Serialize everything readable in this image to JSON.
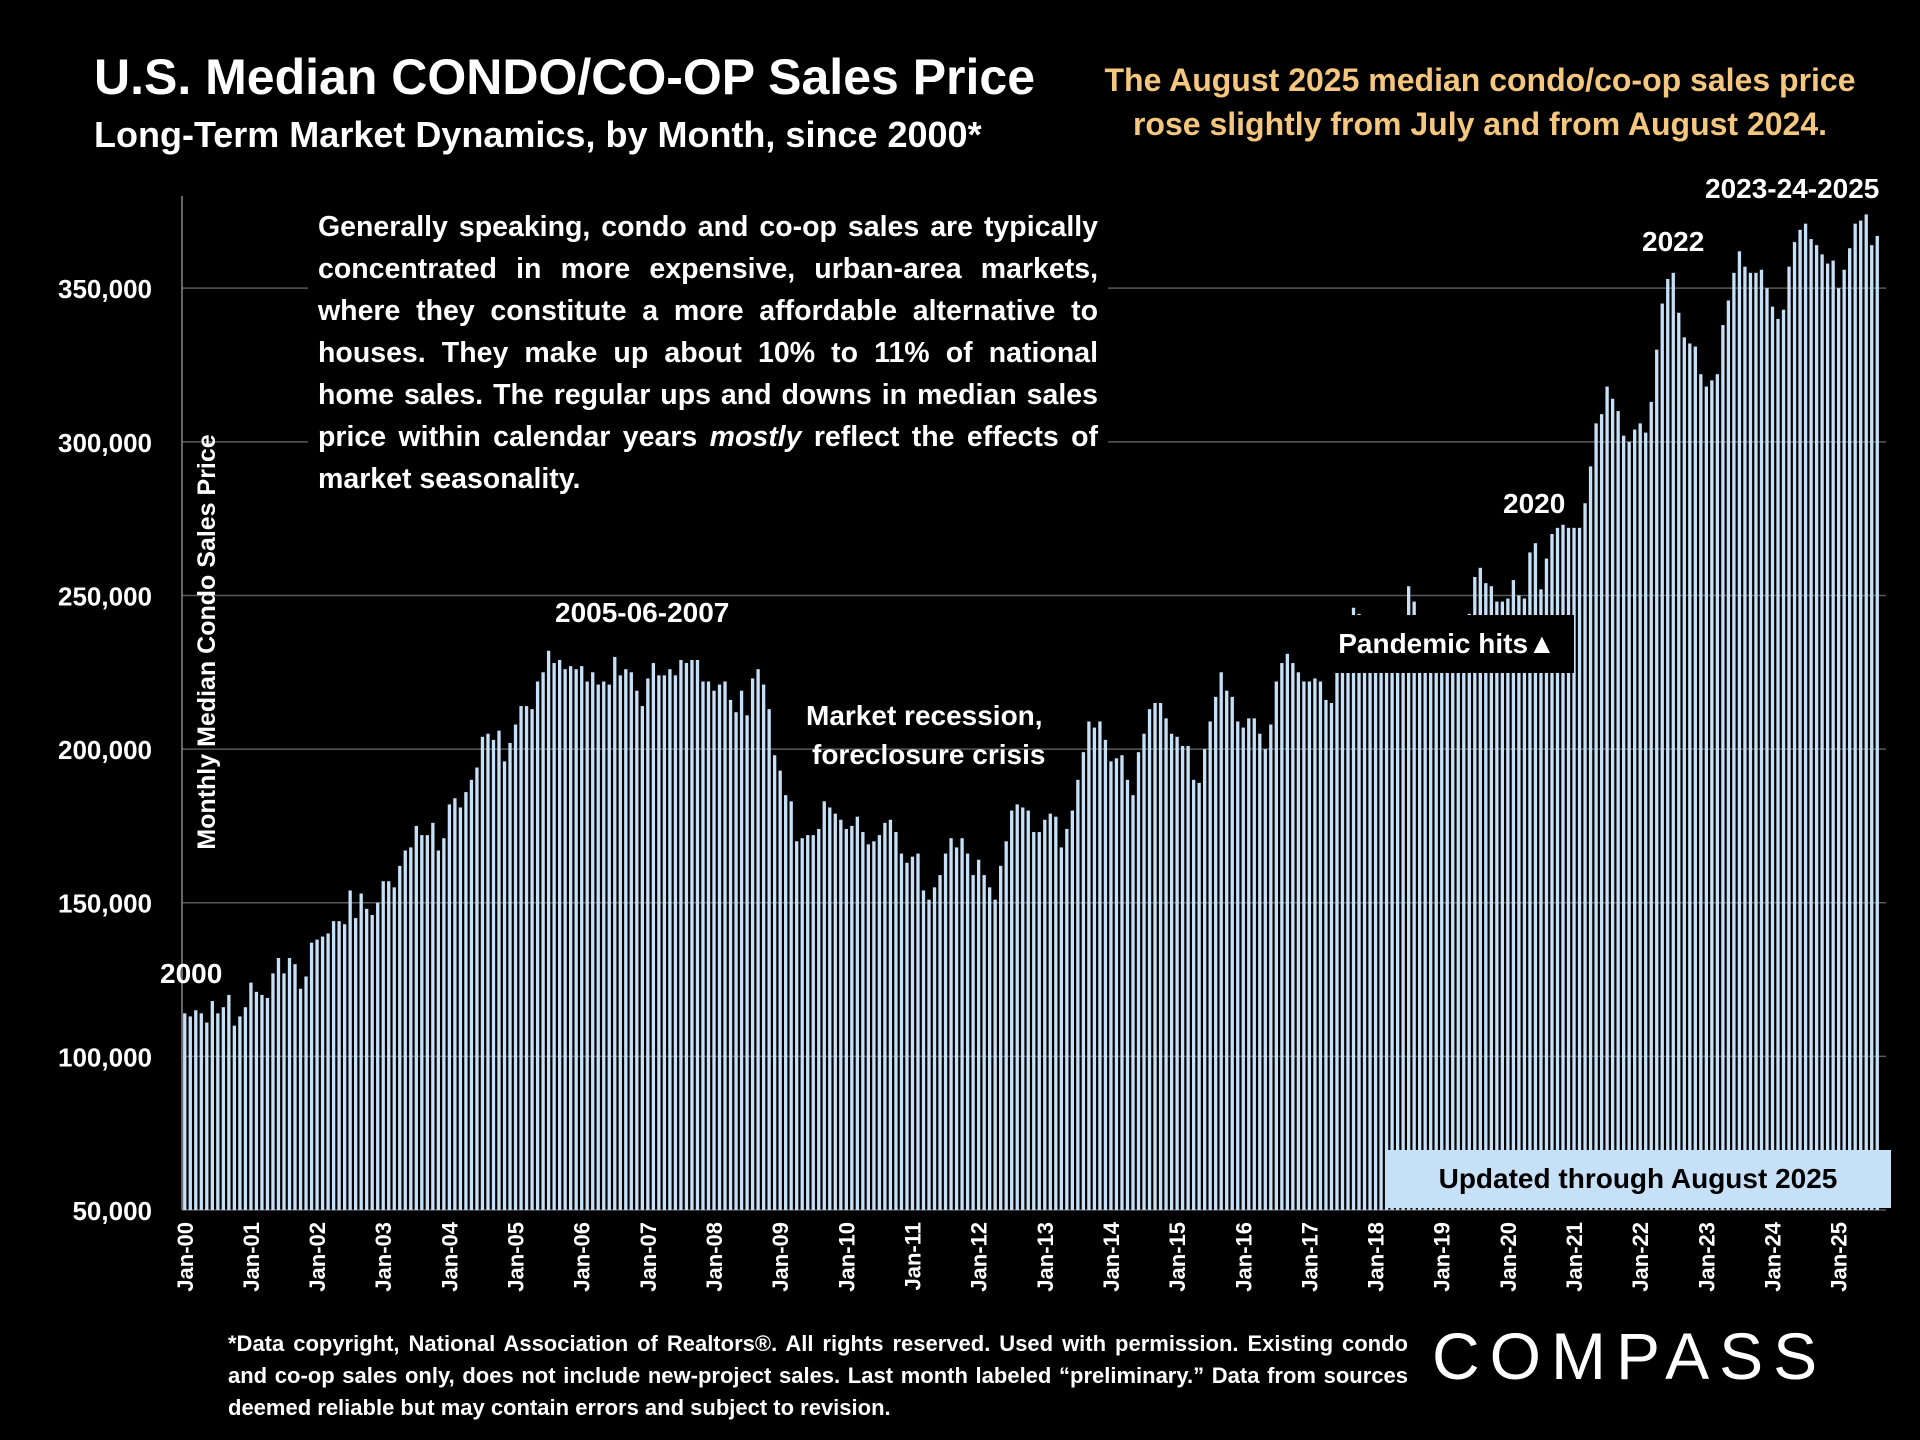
{
  "header": {
    "title": "U.S. Median CONDO/CO-OP Sales Price",
    "subtitle": "Long-Term Market Dynamics, by Month, since 2000*",
    "headline": "The August 2025 median condo/co-op sales price rose slightly from July and from August 2024."
  },
  "note": {
    "text_a": "Generally speaking, condo and co-op sales are typically concentrated in more expensive, urban-area markets, where they constitute a more affordable alternative to houses. They make up about 10% to 11% of national home sales. The regular ups and downs in median sales price within calendar years ",
    "text_em": "mostly",
    "text_b": " reflect the effects of market seasonality."
  },
  "footnote": "*Data copyright, National Association of Realtors®. All rights reserved. Used with permission. Existing condo and co-op sales only, does  not include new-project sales. Last month labeled “preliminary.” Data from sources deemed reliable but may contain errors and subject to revision.",
  "logo": "COMPASS",
  "updated_label": "Updated through August 2025",
  "pandemic_label": "Pandemic hits▲",
  "annotations": {
    "a2000": "2000",
    "a2005": "2005-06-2007",
    "recession_1": "Market recession,",
    "recession_2": "foreclosure crisis",
    "a2020": "2020",
    "a2022": "2022",
    "a2023": "2023-24-2025"
  },
  "colors": {
    "bar": "#c6e0f7",
    "grid": "#595959",
    "headline": "#f5c77e",
    "background": "#000000"
  },
  "chart_data": {
    "type": "bar",
    "ylabel": "Monthly Median Condo Sales Price",
    "ylim": [
      50000,
      380000
    ],
    "y_ticks": [
      50000,
      100000,
      150000,
      200000,
      250000,
      300000,
      350000
    ],
    "y_tick_labels": [
      "50,000",
      "100,000",
      "150,000",
      "200,000",
      "250,000",
      "300,000",
      "350,000"
    ],
    "x_tick_labels": [
      "Jan-00",
      "Jan-01",
      "Jan-02",
      "Jan-03",
      "Jan-04",
      "Jan-05",
      "Jan-06",
      "Jan-07",
      "Jan-08",
      "Jan-09",
      "Jan-10",
      "Jan-11",
      "Jan-12",
      "Jan-13",
      "Jan-14",
      "Jan-15",
      "Jan-16",
      "Jan-17",
      "Jan-18",
      "Jan-19",
      "Jan-20",
      "Jan-21",
      "Jan-22",
      "Jan-23",
      "Jan-24",
      "Jan-25"
    ],
    "start_month": "Jan-00",
    "values": [
      114000,
      113000,
      115000,
      114000,
      111000,
      118000,
      114000,
      116000,
      120000,
      110000,
      113000,
      116000,
      124000,
      121000,
      120000,
      119000,
      127000,
      132000,
      127000,
      132000,
      130000,
      122000,
      126000,
      137000,
      138000,
      139000,
      140000,
      144000,
      144000,
      143000,
      154000,
      145000,
      153000,
      148000,
      146000,
      150000,
      157000,
      157000,
      155000,
      162000,
      167000,
      168000,
      175000,
      172000,
      172000,
      176000,
      167000,
      171000,
      182000,
      184000,
      181000,
      186000,
      190000,
      194000,
      204000,
      205000,
      203000,
      206000,
      196000,
      202000,
      208000,
      214000,
      214000,
      213000,
      222000,
      225000,
      232000,
      228000,
      229000,
      226000,
      227000,
      226000,
      227000,
      222000,
      225000,
      221000,
      222000,
      221000,
      230000,
      224000,
      226000,
      225000,
      219000,
      214000,
      223000,
      228000,
      224000,
      224000,
      226000,
      224000,
      229000,
      228000,
      229000,
      229000,
      222000,
      222000,
      219000,
      221000,
      222000,
      216000,
      212000,
      219000,
      211000,
      223000,
      226000,
      221000,
      213000,
      198000,
      193000,
      185000,
      183000,
      170000,
      171000,
      172000,
      172000,
      174000,
      183000,
      181000,
      179000,
      177000,
      174000,
      175000,
      178000,
      173000,
      169000,
      170000,
      172000,
      176000,
      177000,
      173000,
      166000,
      163000,
      165000,
      166000,
      154000,
      151000,
      155000,
      159000,
      166000,
      171000,
      168000,
      171000,
      166000,
      159000,
      164000,
      159000,
      155000,
      151000,
      162000,
      170000,
      180000,
      182000,
      181000,
      180000,
      173000,
      173000,
      177000,
      179000,
      178000,
      168000,
      174000,
      180000,
      190000,
      199000,
      209000,
      207000,
      209000,
      203000,
      196000,
      197000,
      198000,
      190000,
      185000,
      199000,
      205000,
      213000,
      215000,
      215000,
      210000,
      205000,
      204000,
      201000,
      201000,
      190000,
      189000,
      200000,
      209000,
      217000,
      225000,
      219000,
      217000,
      209000,
      207000,
      210000,
      210000,
      205000,
      200000,
      208000,
      222000,
      228000,
      231000,
      228000,
      225000,
      222000,
      222000,
      223000,
      222000,
      216000,
      215000,
      226000,
      234000,
      240000,
      246000,
      244000,
      241000,
      236000,
      233000,
      235000,
      235000,
      229000,
      229000,
      241000,
      253000,
      248000,
      243000,
      239000,
      236000,
      234000,
      236000,
      235000,
      239000,
      233000,
      232000,
      244000,
      256000,
      259000,
      254000,
      253000,
      248000,
      248000,
      249000,
      255000,
      250000,
      249000,
      264000,
      267000,
      252000,
      262000,
      270000,
      272000,
      273000,
      272000,
      272000,
      272000,
      280000,
      292000,
      306000,
      309000,
      318000,
      314000,
      310000,
      302000,
      300000,
      304000,
      306000,
      303000,
      313000,
      330000,
      345000,
      353000,
      355000,
      342000,
      334000,
      332000,
      331000,
      322000,
      318000,
      320000,
      322000,
      338000,
      346000,
      355000,
      362000,
      357000,
      355000,
      355000,
      356000,
      350000,
      344000,
      340000,
      343000,
      357000,
      365000,
      369000,
      371000,
      366000,
      364000,
      361000,
      358000,
      359000,
      350000,
      356000,
      363000,
      371000,
      372000,
      374000,
      364000,
      367000
    ]
  }
}
